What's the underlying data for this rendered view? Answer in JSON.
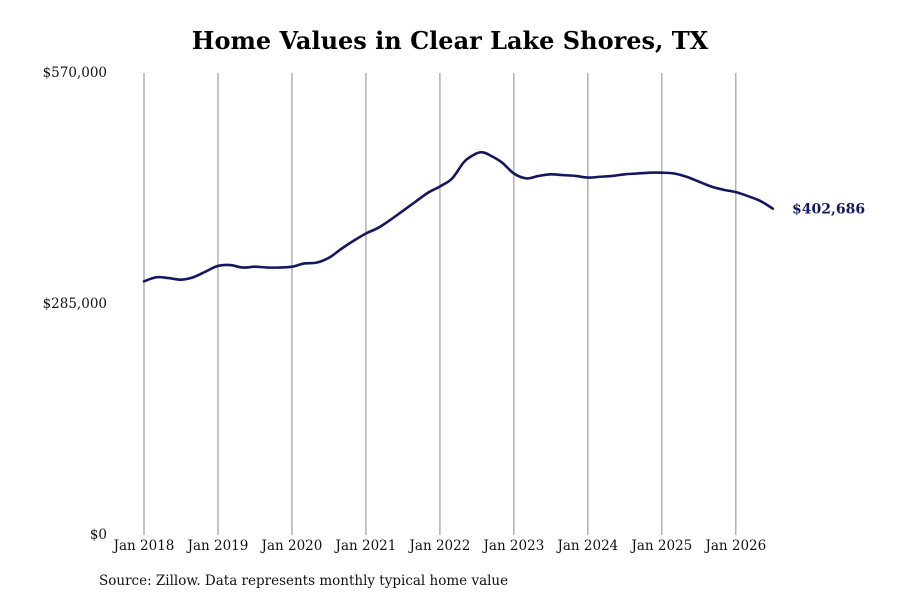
{
  "chart_data": {
    "type": "line",
    "title": "Home Values in Clear Lake Shores, TX",
    "source_note": "Source: Zillow. Data represents monthly typical home value",
    "y_ticks": [
      {
        "value": 0,
        "label": "$0"
      },
      {
        "value": 285000,
        "label": "$285,000"
      },
      {
        "value": 570000,
        "label": "$570,000"
      }
    ],
    "x_ticks": [
      {
        "value": "2018-01",
        "label": "Jan 2018"
      },
      {
        "value": "2019-01",
        "label": "Jan 2019"
      },
      {
        "value": "2020-01",
        "label": "Jan 2020"
      },
      {
        "value": "2021-01",
        "label": "Jan 2021"
      },
      {
        "value": "2022-01",
        "label": "Jan 2022"
      },
      {
        "value": "2023-01",
        "label": "Jan 2023"
      },
      {
        "value": "2024-01",
        "label": "Jan 2024"
      },
      {
        "value": "2025-01",
        "label": "Jan 2025"
      },
      {
        "value": "2026-01",
        "label": "Jan 2026"
      }
    ],
    "ylim": [
      0,
      570000
    ],
    "xlim": [
      "2018-01",
      "2026-08"
    ],
    "grid": "vertical",
    "line_color": "#141760",
    "series": [
      {
        "end_label": "$402,686",
        "x": [
          "2018-01",
          "2018-03",
          "2018-05",
          "2018-07",
          "2018-09",
          "2018-11",
          "2019-01",
          "2019-03",
          "2019-05",
          "2019-07",
          "2019-09",
          "2019-11",
          "2020-01",
          "2020-03",
          "2020-05",
          "2020-07",
          "2020-09",
          "2020-11",
          "2021-01",
          "2021-03",
          "2021-05",
          "2021-07",
          "2021-09",
          "2021-11",
          "2022-01",
          "2022-03",
          "2022-05",
          "2022-07",
          "2022-08",
          "2022-09",
          "2022-11",
          "2023-01",
          "2023-03",
          "2023-05",
          "2023-07",
          "2023-09",
          "2023-11",
          "2024-01",
          "2024-03",
          "2024-05",
          "2024-07",
          "2024-09",
          "2024-11",
          "2025-01",
          "2025-03",
          "2025-05",
          "2025-07",
          "2025-09",
          "2025-11",
          "2026-01",
          "2026-03",
          "2026-05",
          "2026-07"
        ],
        "values": [
          313000,
          318000,
          317000,
          315000,
          318000,
          325000,
          332000,
          333000,
          330000,
          331000,
          330000,
          330000,
          331000,
          335000,
          336000,
          342000,
          353000,
          363000,
          372000,
          379000,
          389000,
          400000,
          411000,
          422000,
          430000,
          440000,
          461000,
          471000,
          472000,
          469000,
          460000,
          446000,
          440000,
          443000,
          445000,
          444000,
          443000,
          441000,
          442000,
          443000,
          445000,
          446000,
          447000,
          447000,
          446000,
          442000,
          436000,
          430000,
          426000,
          423000,
          418000,
          412000,
          402686
        ]
      }
    ]
  }
}
